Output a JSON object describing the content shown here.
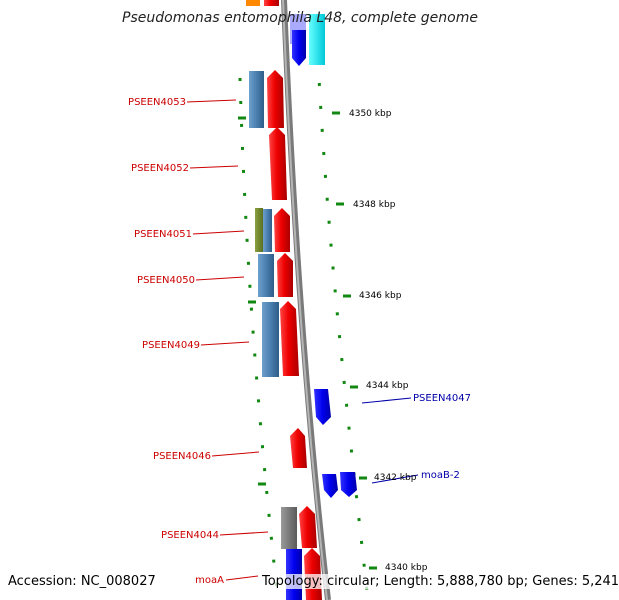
{
  "title": "Pseudomonas entomophila L48, complete genome",
  "accession": "Accession: NC_008027",
  "topology": "Topology: circular; Length: 5,888,780 bp; Genes: 5,241",
  "colors": {
    "backbone": "#8c8c8c",
    "tick": "#118811",
    "forward_label": "#cc0000",
    "reverse_label": "#0000aa",
    "tick_label": "#000000"
  },
  "scale_labels": [
    "4350 kbp",
    "4348 kbp",
    "4346 kbp",
    "4344 kbp",
    "4342 kbp",
    "4340 kbp"
  ],
  "gene_labels": [
    {
      "text": "PSEEN4053",
      "strand": "forward"
    },
    {
      "text": "PSEEN4052",
      "strand": "forward"
    },
    {
      "text": "PSEEN4051",
      "strand": "forward"
    },
    {
      "text": "PSEEN4050",
      "strand": "forward"
    },
    {
      "text": "PSEEN4049",
      "strand": "forward"
    },
    {
      "text": "PSEEN4047",
      "strand": "reverse"
    },
    {
      "text": "PSEEN4046",
      "strand": "forward"
    },
    {
      "text": "moaB-2",
      "strand": "reverse"
    },
    {
      "text": "PSEEN4044",
      "strand": "forward"
    },
    {
      "text": "moaA",
      "strand": "forward"
    }
  ]
}
